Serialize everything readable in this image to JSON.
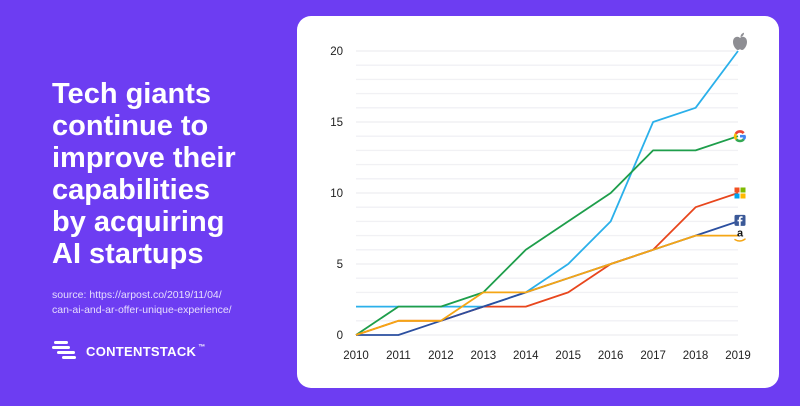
{
  "headline": {
    "lines": [
      "Tech giants",
      "continue to",
      "improve their",
      "capabilities",
      "by acquiring",
      "AI startups"
    ]
  },
  "source": {
    "lines": [
      "source: https://arpost.co/2019/11/04/",
      "can-ai-and-ar-offer-unique-experience/"
    ]
  },
  "brand": {
    "name": "CONTENTSTACK",
    "tm": "™"
  },
  "colors": {
    "background": "#6d3df2",
    "card": "#ffffff",
    "apple": "#2bb0ea",
    "google": "#1e9e4b",
    "microsoft": "#e8461d",
    "facebook": "#2b4fa0",
    "amazon": "#f5a614"
  },
  "chart_data": {
    "type": "line",
    "title": "",
    "xlabel": "",
    "ylabel": "",
    "x": [
      2010,
      2011,
      2012,
      2013,
      2014,
      2015,
      2016,
      2017,
      2018,
      2019
    ],
    "x_tick_labels": [
      "2010",
      "2011",
      "2012",
      "2013",
      "2014",
      "2015",
      "2016",
      "2017",
      "2018",
      "2019"
    ],
    "y_ticks": [
      0,
      5,
      10,
      15,
      20
    ],
    "y_tick_labels": [
      "0",
      "5",
      "10",
      "15",
      "20"
    ],
    "ylim": [
      0,
      20
    ],
    "grid": "horizontal",
    "legend": "end-of-line company logos",
    "series": [
      {
        "key": "apple",
        "icon": "apple-logo-icon",
        "color": "#2bb0ea",
        "values": [
          2,
          2,
          2,
          2,
          3,
          5,
          8,
          15,
          16,
          20
        ]
      },
      {
        "key": "google",
        "icon": "google-logo-icon",
        "color": "#1e9e4b",
        "values": [
          0,
          2,
          2,
          3,
          6,
          8,
          10,
          13,
          13,
          14
        ]
      },
      {
        "key": "microsoft",
        "icon": "microsoft-logo-icon",
        "color": "#e8461d",
        "values": [
          0,
          1,
          1,
          2,
          2,
          3,
          5,
          6,
          9,
          10
        ]
      },
      {
        "key": "facebook",
        "icon": "facebook-logo-icon",
        "color": "#2b4fa0",
        "values": [
          0,
          0,
          1,
          2,
          3,
          4,
          5,
          6,
          7,
          8
        ]
      },
      {
        "key": "amazon",
        "icon": "amazon-logo-icon",
        "color": "#f5a614",
        "values": [
          0,
          1,
          1,
          3,
          3,
          4,
          5,
          6,
          7,
          7
        ]
      }
    ]
  }
}
